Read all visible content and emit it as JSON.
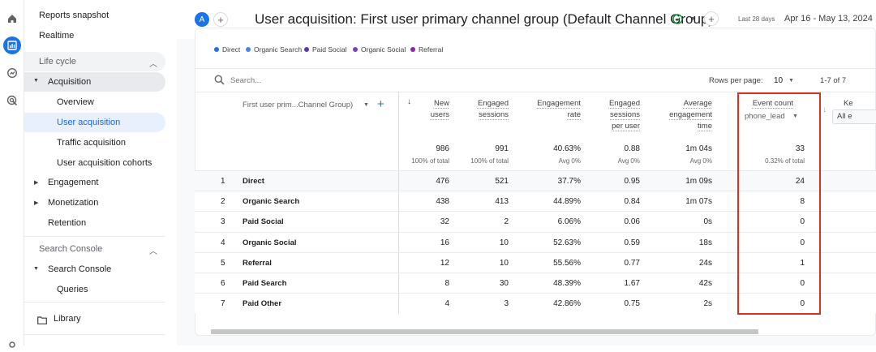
{
  "sidebar": {
    "top_items": [
      "Reports snapshot",
      "Realtime"
    ],
    "lifecycle_header": "Life cycle",
    "acquisition": "Acquisition",
    "acquisition_children": [
      "Overview",
      "User acquisition",
      "Traffic acquisition",
      "User acquisition cohorts"
    ],
    "other_sections": [
      "Engagement",
      "Monetization",
      "Retention"
    ],
    "search_console_header": "Search Console",
    "search_console_item": "Search Console",
    "queries": "Queries",
    "library": "Library"
  },
  "header": {
    "avatar": "A",
    "title": "User acquisition: First user primary channel group (Default Channel Group)",
    "date_label": "Last 28 days",
    "date_range": "Apr 16 - May 13, 2024"
  },
  "legend": [
    {
      "label": "Direct",
      "color": "#1a73e8"
    },
    {
      "label": "Organic Search",
      "color": "#4285f4"
    },
    {
      "label": "Paid Social",
      "color": "#5e35b1"
    },
    {
      "label": "Organic Social",
      "color": "#7b3fbf"
    },
    {
      "label": "Referral",
      "color": "#8e24aa"
    }
  ],
  "toolbar": {
    "search_placeholder": "Search...",
    "rows_per_page_label": "Rows per page:",
    "rows_per_page": "10",
    "pagination": "1-7 of 7"
  },
  "table": {
    "dimension_header": "First user prim...Channel Group)",
    "columns": [
      {
        "label": "New users",
        "total": "986",
        "sub": "100% of total"
      },
      {
        "label": "Engaged sessions",
        "total": "991",
        "sub": "100% of total"
      },
      {
        "label": "Engagement rate",
        "total": "40.63%",
        "sub": "Avg 0%"
      },
      {
        "label": "Engaged sessions per user",
        "total": "0.88",
        "sub": "Avg 0%"
      },
      {
        "label": "Average engagement time",
        "total": "1m 04s",
        "sub": "Avg 0%"
      },
      {
        "label": "Event count",
        "total": "33",
        "sub": "0.32% of total"
      }
    ],
    "event_filter": "phone_lead",
    "next_col_label": "Ke",
    "next_col_select": "All e",
    "rows": [
      {
        "n": "1",
        "name": "Direct",
        "v": [
          "476",
          "521",
          "37.7%",
          "0.95",
          "1m 09s",
          "24"
        ]
      },
      {
        "n": "2",
        "name": "Organic Search",
        "v": [
          "438",
          "413",
          "44.89%",
          "0.84",
          "1m 07s",
          "8"
        ]
      },
      {
        "n": "3",
        "name": "Paid Social",
        "v": [
          "32",
          "2",
          "6.06%",
          "0.06",
          "0s",
          "0"
        ]
      },
      {
        "n": "4",
        "name": "Organic Social",
        "v": [
          "16",
          "10",
          "52.63%",
          "0.59",
          "18s",
          "0"
        ]
      },
      {
        "n": "5",
        "name": "Referral",
        "v": [
          "12",
          "10",
          "55.56%",
          "0.77",
          "24s",
          "1"
        ]
      },
      {
        "n": "6",
        "name": "Paid Search",
        "v": [
          "8",
          "30",
          "48.39%",
          "1.67",
          "42s",
          "0"
        ]
      },
      {
        "n": "7",
        "name": "Paid Other",
        "v": [
          "4",
          "3",
          "42.86%",
          "0.75",
          "2s",
          "0"
        ]
      }
    ]
  }
}
